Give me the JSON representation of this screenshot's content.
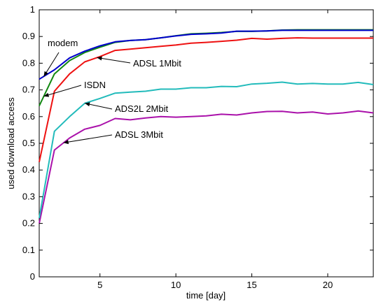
{
  "chart_data": {
    "type": "line",
    "title": "",
    "xlabel": "time [day]",
    "ylabel": "used download access",
    "xlim": [
      1,
      23
    ],
    "ylim": [
      0,
      1
    ],
    "xticks": [
      5,
      10,
      15,
      20
    ],
    "yticks": [
      0,
      0.1,
      0.2,
      0.3,
      0.4,
      0.5,
      0.6,
      0.7,
      0.8,
      0.9,
      1
    ],
    "grid": false,
    "x": [
      1,
      2,
      3,
      4,
      5,
      6,
      7,
      8,
      9,
      10,
      11,
      12,
      13,
      14,
      15,
      16,
      17,
      18,
      19,
      20,
      21,
      22,
      23
    ],
    "series": [
      {
        "name": "modem",
        "color": "#0000cc",
        "values": [
          0.74,
          0.775,
          0.82,
          0.845,
          0.865,
          0.88,
          0.885,
          0.888,
          0.895,
          0.902,
          0.908,
          0.91,
          0.913,
          0.92,
          0.92,
          0.921,
          0.923,
          0.923,
          0.923,
          0.923,
          0.923,
          0.923,
          0.923
        ]
      },
      {
        "name": "ISDN",
        "color": "#118811",
        "values": [
          0.64,
          0.76,
          0.81,
          0.84,
          0.86,
          0.878,
          0.885,
          0.888,
          0.895,
          0.903,
          0.91,
          0.912,
          0.915,
          0.919,
          0.919,
          0.921,
          0.924,
          0.925,
          0.925,
          0.925,
          0.925,
          0.925,
          0.925
        ]
      },
      {
        "name": "ADSL 1Mbit",
        "color": "#ee1111",
        "values": [
          0.43,
          0.695,
          0.76,
          0.805,
          0.825,
          0.848,
          0.853,
          0.858,
          0.863,
          0.868,
          0.875,
          0.878,
          0.882,
          0.886,
          0.893,
          0.89,
          0.893,
          0.895,
          0.894,
          0.894,
          0.894,
          0.894,
          0.894
        ]
      },
      {
        "name": "ADS2L 2Mbit",
        "color": "#22bbbb",
        "values": [
          0.22,
          0.545,
          0.6,
          0.65,
          0.668,
          0.688,
          0.692,
          0.695,
          0.703,
          0.703,
          0.708,
          0.708,
          0.713,
          0.712,
          0.722,
          0.725,
          0.729,
          0.722,
          0.724,
          0.722,
          0.722,
          0.728,
          0.72
        ]
      },
      {
        "name": "ADSL 3Mbit",
        "color": "#aa11aa",
        "values": [
          0.2,
          0.475,
          0.52,
          0.553,
          0.567,
          0.593,
          0.588,
          0.595,
          0.6,
          0.598,
          0.6,
          0.603,
          0.609,
          0.606,
          0.614,
          0.619,
          0.62,
          0.614,
          0.617,
          0.61,
          0.614,
          0.621,
          0.614
        ]
      }
    ],
    "annotations": [
      {
        "text": "modem",
        "series": "modem",
        "x": 1.3
      },
      {
        "text": "ISDN",
        "series": "ISDN",
        "x": 1.3
      },
      {
        "text": "ADSL 1Mbit",
        "series": "ADSL 1Mbit",
        "x": 4.8
      },
      {
        "text": "ADS2L 2Mbit",
        "series": "ADS2L 2Mbit",
        "x": 4.0
      },
      {
        "text": "ADSL 3Mbit",
        "series": "ADSL 3Mbit",
        "x": 2.6
      }
    ]
  }
}
